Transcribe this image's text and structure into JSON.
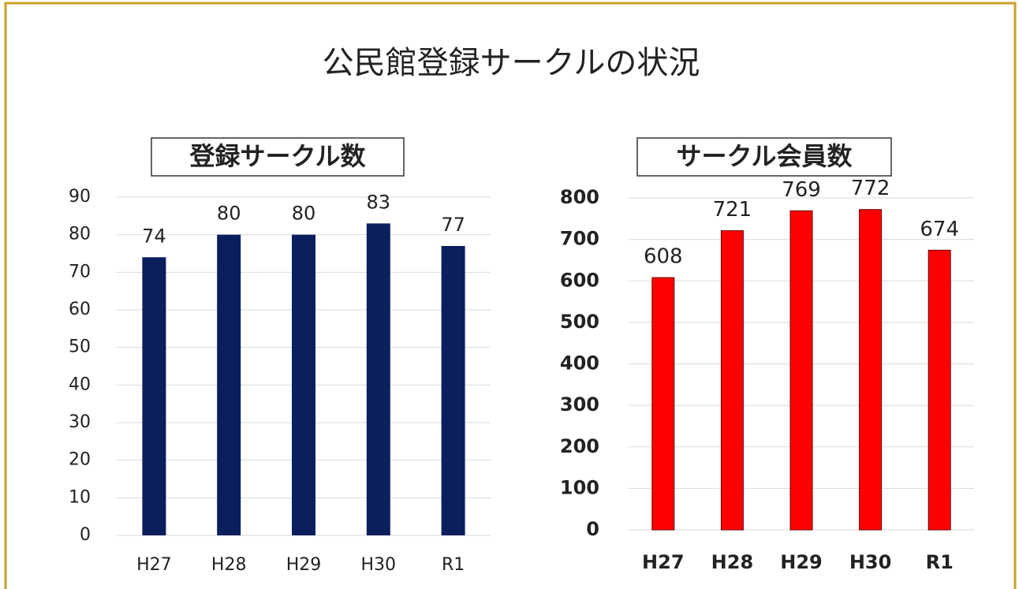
{
  "title": "公民館登録サークルの状況",
  "chart_data": [
    {
      "type": "bar",
      "title": "登録サークル数",
      "categories": [
        "H27",
        "H28",
        "H29",
        "H30",
        "R1"
      ],
      "values": [
        74,
        80,
        80,
        83,
        77
      ],
      "color": "#0b1f5e",
      "ylim": [
        0,
        90
      ],
      "yticks": [
        0,
        10,
        20,
        30,
        40,
        50,
        60,
        70,
        80,
        90
      ],
      "grid": true
    },
    {
      "type": "bar",
      "title": "サークル会員数",
      "categories": [
        "H27",
        "H28",
        "H29",
        "H30",
        "R1"
      ],
      "values": [
        608,
        721,
        769,
        772,
        674
      ],
      "color": "#ff0000",
      "ylim": [
        0,
        800
      ],
      "yticks": [
        0,
        100,
        200,
        300,
        400,
        500,
        600,
        700,
        800
      ],
      "grid": true
    }
  ]
}
